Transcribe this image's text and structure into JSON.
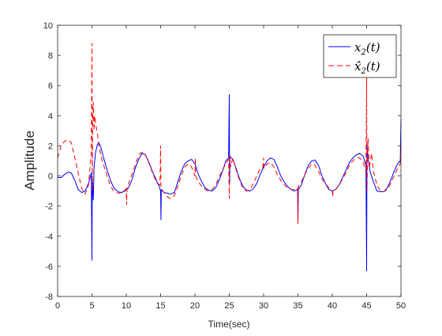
{
  "chart_data": {
    "type": "line",
    "title": "",
    "xlabel": "Time(sec)",
    "ylabel": "Amplitude",
    "xlim": [
      0,
      50
    ],
    "ylim": [
      -8,
      10
    ],
    "xticks": [
      0,
      5,
      10,
      15,
      20,
      25,
      30,
      35,
      40,
      45,
      50
    ],
    "yticks": [
      -8,
      -6,
      -4,
      -2,
      0,
      2,
      4,
      6,
      8,
      10
    ],
    "grid": false,
    "legend": {
      "position": "top-right"
    },
    "series": [
      {
        "name": "x2(t)",
        "legend_main": "x",
        "legend_sub": "2",
        "legend_arg": "(t)",
        "color": "#0000ff",
        "style": "solid",
        "points": [
          [
            0,
            -0.1
          ],
          [
            0.5,
            -0.1
          ],
          [
            1,
            0.1
          ],
          [
            1.5,
            0.25
          ],
          [
            2,
            0.2
          ],
          [
            2.5,
            -0.3
          ],
          [
            3,
            -0.9
          ],
          [
            3.5,
            -1.1
          ],
          [
            4,
            -1.0
          ],
          [
            4.5,
            -0.5
          ],
          [
            4.9,
            0.2
          ],
          [
            5.0,
            -5.6
          ],
          [
            5.05,
            0.0
          ],
          [
            5.2,
            -1.6
          ],
          [
            5.3,
            0.5
          ],
          [
            5.5,
            1.5
          ],
          [
            5.8,
            2.1
          ],
          [
            6.0,
            2.2
          ],
          [
            6.3,
            1.9
          ],
          [
            6.7,
            1.2
          ],
          [
            7.2,
            0.4
          ],
          [
            7.7,
            -0.3
          ],
          [
            8.2,
            -0.8
          ],
          [
            8.8,
            -1.05
          ],
          [
            9.3,
            -1.1
          ],
          [
            9.8,
            -1.0
          ],
          [
            10.3,
            -0.8
          ],
          [
            10.8,
            -0.3
          ],
          [
            11.3,
            0.5
          ],
          [
            11.8,
            1.1
          ],
          [
            12.3,
            1.5
          ],
          [
            12.8,
            1.4
          ],
          [
            13.3,
            0.9
          ],
          [
            13.8,
            0.3
          ],
          [
            14.3,
            -0.2
          ],
          [
            14.8,
            -0.7
          ],
          [
            15.0,
            -1.0
          ],
          [
            15.05,
            -2.9
          ],
          [
            15.1,
            -0.9
          ],
          [
            15.5,
            -1.1
          ],
          [
            16,
            -1.15
          ],
          [
            16.5,
            -1.2
          ],
          [
            17,
            -1.1
          ],
          [
            17.5,
            -0.4
          ],
          [
            18,
            0.3
          ],
          [
            18.5,
            0.8
          ],
          [
            19,
            1.0
          ],
          [
            19.5,
            1.1
          ],
          [
            20,
            0.8
          ],
          [
            20.5,
            0.1
          ],
          [
            21,
            -0.4
          ],
          [
            21.5,
            -0.8
          ],
          [
            22,
            -0.95
          ],
          [
            22.5,
            -1.0
          ],
          [
            23,
            -0.8
          ],
          [
            23.5,
            -0.3
          ],
          [
            24,
            0.3
          ],
          [
            24.5,
            1.0
          ],
          [
            24.9,
            1.2
          ],
          [
            25.0,
            5.4
          ],
          [
            25.05,
            -0.5
          ],
          [
            25.1,
            1.3
          ],
          [
            25.5,
            1.1
          ],
          [
            26,
            0.5
          ],
          [
            26.5,
            -0.2
          ],
          [
            27,
            -0.7
          ],
          [
            27.5,
            -0.95
          ],
          [
            28,
            -1.0
          ],
          [
            28.5,
            -0.85
          ],
          [
            29,
            -0.5
          ],
          [
            29.5,
            0.1
          ],
          [
            30,
            0.6
          ],
          [
            30.5,
            1.0
          ],
          [
            31,
            1.2
          ],
          [
            31.5,
            1.1
          ],
          [
            32,
            0.6
          ],
          [
            32.5,
            0.0
          ],
          [
            33,
            -0.4
          ],
          [
            33.5,
            -0.7
          ],
          [
            34,
            -0.9
          ],
          [
            34.5,
            -1.0
          ],
          [
            34.95,
            -0.9
          ],
          [
            35.0,
            -3.0
          ],
          [
            35.05,
            -0.9
          ],
          [
            35.5,
            -0.6
          ],
          [
            36,
            0.1
          ],
          [
            36.5,
            0.7
          ],
          [
            37,
            1.0
          ],
          [
            37.5,
            1.05
          ],
          [
            38,
            0.7
          ],
          [
            38.5,
            0.0
          ],
          [
            39,
            -0.5
          ],
          [
            39.5,
            -0.9
          ],
          [
            40,
            -1.0
          ],
          [
            40.5,
            -0.9
          ],
          [
            41,
            -0.6
          ],
          [
            41.5,
            -0.1
          ],
          [
            42,
            0.4
          ],
          [
            42.5,
            0.9
          ],
          [
            43,
            1.2
          ],
          [
            43.5,
            1.4
          ],
          [
            44,
            1.5
          ],
          [
            44.5,
            1.3
          ],
          [
            44.9,
            0.7
          ],
          [
            45.0,
            -6.3
          ],
          [
            45.05,
            2.0
          ],
          [
            45.2,
            1.2
          ],
          [
            45.5,
            0.3
          ],
          [
            46,
            -0.4
          ],
          [
            46.5,
            -1.0
          ],
          [
            47,
            -1.05
          ],
          [
            47.5,
            -1.05
          ],
          [
            48,
            -0.8
          ],
          [
            48.5,
            -0.3
          ],
          [
            49,
            0.3
          ],
          [
            49.5,
            0.8
          ],
          [
            49.9,
            1.0
          ],
          [
            50,
            3.8
          ]
        ]
      },
      {
        "name": "x̂2(t)",
        "legend_main": "x̂",
        "legend_sub": "2",
        "legend_arg": "(t)",
        "color": "#ff0000",
        "style": "dashed",
        "points": [
          [
            0,
            1.2
          ],
          [
            0.5,
            2.0
          ],
          [
            1,
            2.3
          ],
          [
            1.5,
            2.4
          ],
          [
            2,
            2.2
          ],
          [
            2.5,
            1.2
          ],
          [
            3,
            0.2
          ],
          [
            3.5,
            -0.8
          ],
          [
            4,
            -1.2
          ],
          [
            4.5,
            -0.6
          ],
          [
            4.9,
            1.5
          ],
          [
            5.0,
            8.8
          ],
          [
            5.05,
            -1.0
          ],
          [
            5.1,
            3.5
          ],
          [
            5.2,
            4.9
          ],
          [
            5.3,
            3.0
          ],
          [
            5.4,
            4.0
          ],
          [
            5.6,
            3.3
          ],
          [
            5.8,
            2.8
          ],
          [
            6.0,
            2.0
          ],
          [
            6.5,
            1.0
          ],
          [
            7,
            0.3
          ],
          [
            7.5,
            -0.4
          ],
          [
            8,
            -0.9
          ],
          [
            8.5,
            -1.1
          ],
          [
            9,
            -1.15
          ],
          [
            9.5,
            -1.05
          ],
          [
            10,
            -0.85
          ],
          [
            10.05,
            -1.9
          ],
          [
            10.1,
            -0.8
          ],
          [
            10.5,
            -0.3
          ],
          [
            11,
            0.3
          ],
          [
            11.5,
            1.0
          ],
          [
            12,
            1.5
          ],
          [
            12.5,
            1.6
          ],
          [
            13,
            1.2
          ],
          [
            13.5,
            0.6
          ],
          [
            14,
            0.0
          ],
          [
            14.5,
            -0.5
          ],
          [
            14.9,
            -0.6
          ],
          [
            15.0,
            2.0
          ],
          [
            15.05,
            -0.8
          ],
          [
            15.5,
            -1.1
          ],
          [
            16,
            -1.4
          ],
          [
            16.5,
            -1.5
          ],
          [
            17,
            -1.3
          ],
          [
            17.5,
            -0.7
          ],
          [
            18,
            0.0
          ],
          [
            18.5,
            0.6
          ],
          [
            19,
            0.8
          ],
          [
            19.5,
            0.6
          ],
          [
            20,
            0.0
          ],
          [
            20.05,
            1.2
          ],
          [
            20.1,
            0.0
          ],
          [
            20.5,
            -0.4
          ],
          [
            21,
            -0.7
          ],
          [
            21.5,
            -0.9
          ],
          [
            22,
            -1.0
          ],
          [
            22.5,
            -0.9
          ],
          [
            23,
            -0.6
          ],
          [
            23.5,
            -0.1
          ],
          [
            24,
            0.4
          ],
          [
            24.5,
            0.8
          ],
          [
            24.9,
            1.1
          ],
          [
            25.0,
            -1.5
          ],
          [
            25.05,
            1.4
          ],
          [
            25.2,
            0.6
          ],
          [
            25.5,
            1.2
          ],
          [
            26,
            0.4
          ],
          [
            26.5,
            -0.3
          ],
          [
            27,
            -0.8
          ],
          [
            27.5,
            -1.0
          ],
          [
            28,
            -0.9
          ],
          [
            28.5,
            -0.5
          ],
          [
            29,
            0.0
          ],
          [
            29.5,
            0.5
          ],
          [
            29.9,
            0.6
          ],
          [
            30.0,
            1.2
          ],
          [
            30.05,
            0.5
          ],
          [
            30.5,
            0.8
          ],
          [
            31,
            0.9
          ],
          [
            31.5,
            0.6
          ],
          [
            32,
            0.1
          ],
          [
            32.5,
            -0.3
          ],
          [
            33,
            -0.6
          ],
          [
            33.5,
            -0.8
          ],
          [
            34,
            -0.9
          ],
          [
            34.5,
            -0.9
          ],
          [
            34.95,
            -0.8
          ],
          [
            35.0,
            -3.2
          ],
          [
            35.05,
            -0.7
          ],
          [
            35.5,
            -0.4
          ],
          [
            36,
            0.1
          ],
          [
            36.5,
            0.5
          ],
          [
            37,
            0.8
          ],
          [
            37.5,
            0.7
          ],
          [
            38,
            0.3
          ],
          [
            38.5,
            -0.2
          ],
          [
            39,
            -0.5
          ],
          [
            39.5,
            -0.8
          ],
          [
            40,
            -1.0
          ],
          [
            40.05,
            -1.4
          ],
          [
            40.1,
            -1.0
          ],
          [
            40.5,
            -0.9
          ],
          [
            41,
            -0.6
          ],
          [
            41.5,
            -0.2
          ],
          [
            42,
            0.2
          ],
          [
            42.5,
            0.7
          ],
          [
            43,
            1.0
          ],
          [
            43.5,
            1.2
          ],
          [
            44,
            1.2
          ],
          [
            44.5,
            0.9
          ],
          [
            44.9,
            0.3
          ],
          [
            45.0,
            6.5
          ],
          [
            45.05,
            -1.0
          ],
          [
            45.2,
            2.5
          ],
          [
            45.4,
            0.5
          ],
          [
            45.7,
            1.5
          ],
          [
            46,
            0.3
          ],
          [
            46.5,
            -0.6
          ],
          [
            47,
            -1.0
          ],
          [
            47.5,
            -1.05
          ],
          [
            48,
            -0.9
          ],
          [
            48.5,
            -0.5
          ],
          [
            49,
            0.0
          ],
          [
            49.5,
            0.5
          ],
          [
            49.9,
            0.8
          ],
          [
            50,
            2.0
          ]
        ]
      }
    ]
  }
}
